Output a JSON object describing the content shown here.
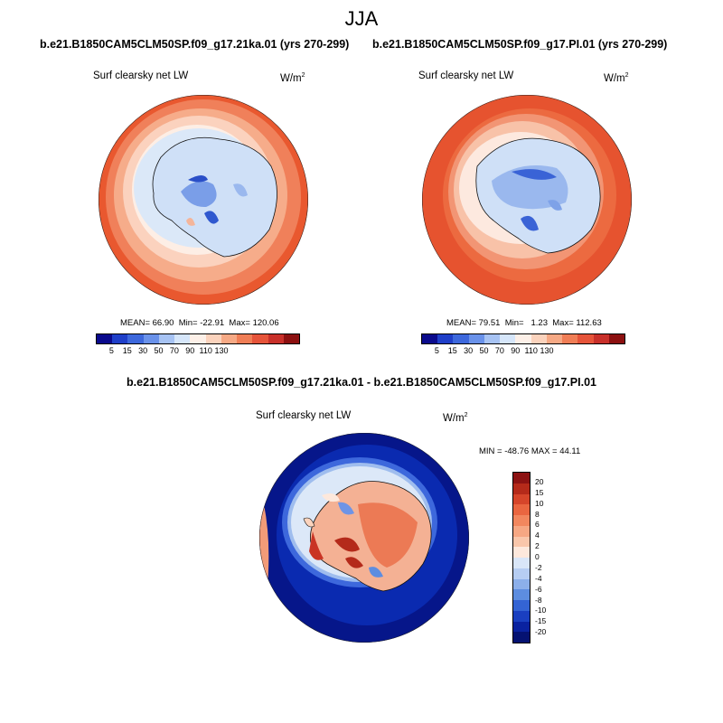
{
  "page": {
    "season": "JJA"
  },
  "panels": [
    {
      "case_title": "b.e21.B1850CAM5CLM50SP.f09_g17.21ka.01 (yrs 270-299)",
      "variable": "Surf clearsky net LW",
      "units": "W/m",
      "units_sup": "2",
      "stats": {
        "mean_label": "MEAN=",
        "mean": "66.90",
        "min_label": "Min=",
        "min": "-22.91",
        "max_label": "Max=",
        "max": "120.06"
      }
    },
    {
      "case_title": "b.e21.B1850CAM5CLM50SP.f09_g17.PI.01 (yrs 270-299)",
      "variable": "Surf clearsky net LW",
      "units": "W/m",
      "units_sup": "2",
      "stats": {
        "mean_label": "MEAN=",
        "mean": "79.51",
        "min_label": "Min=",
        "min": "1.23",
        "max_label": "Max=",
        "max": "112.63"
      }
    }
  ],
  "diff_panel": {
    "title": "b.e21.B1850CAM5CLM50SP.f09_g17.21ka.01 - b.e21.B1850CAM5CLM50SP.f09_g17.PI.01",
    "variable": "Surf clearsky net LW",
    "units": "W/m",
    "units_sup": "2",
    "minmax_label": "MIN = -48.76 MAX =  44.11"
  },
  "abs_colorbar": {
    "ticks": [
      "5",
      "15",
      "30",
      "50",
      "70",
      "90",
      "110",
      "130"
    ],
    "colors": [
      "#0a0a8c",
      "#1f3fc8",
      "#3d68dc",
      "#6a92ea",
      "#a7c3f3",
      "#d6e6fa",
      "#fdf0e8",
      "#fbd3bd",
      "#f6a985",
      "#f07e56",
      "#e6543a",
      "#c8302a",
      "#8c1010"
    ]
  },
  "diff_colorbar": {
    "ticks": [
      "20",
      "15",
      "10",
      "8",
      "6",
      "4",
      "2",
      "0",
      "-2",
      "-4",
      "-6",
      "-8",
      "-10",
      "-15",
      "-20"
    ],
    "colors": [
      "#8c1212",
      "#b52a1a",
      "#d6452a",
      "#ea6640",
      "#f2875e",
      "#f6a783",
      "#f9c6aa",
      "#fde8dc",
      "#d9e6f8",
      "#b6cdf2",
      "#8cafea",
      "#5d8de0",
      "#3464d4",
      "#1a3fc0",
      "#0a22a0",
      "#051272"
    ]
  }
}
